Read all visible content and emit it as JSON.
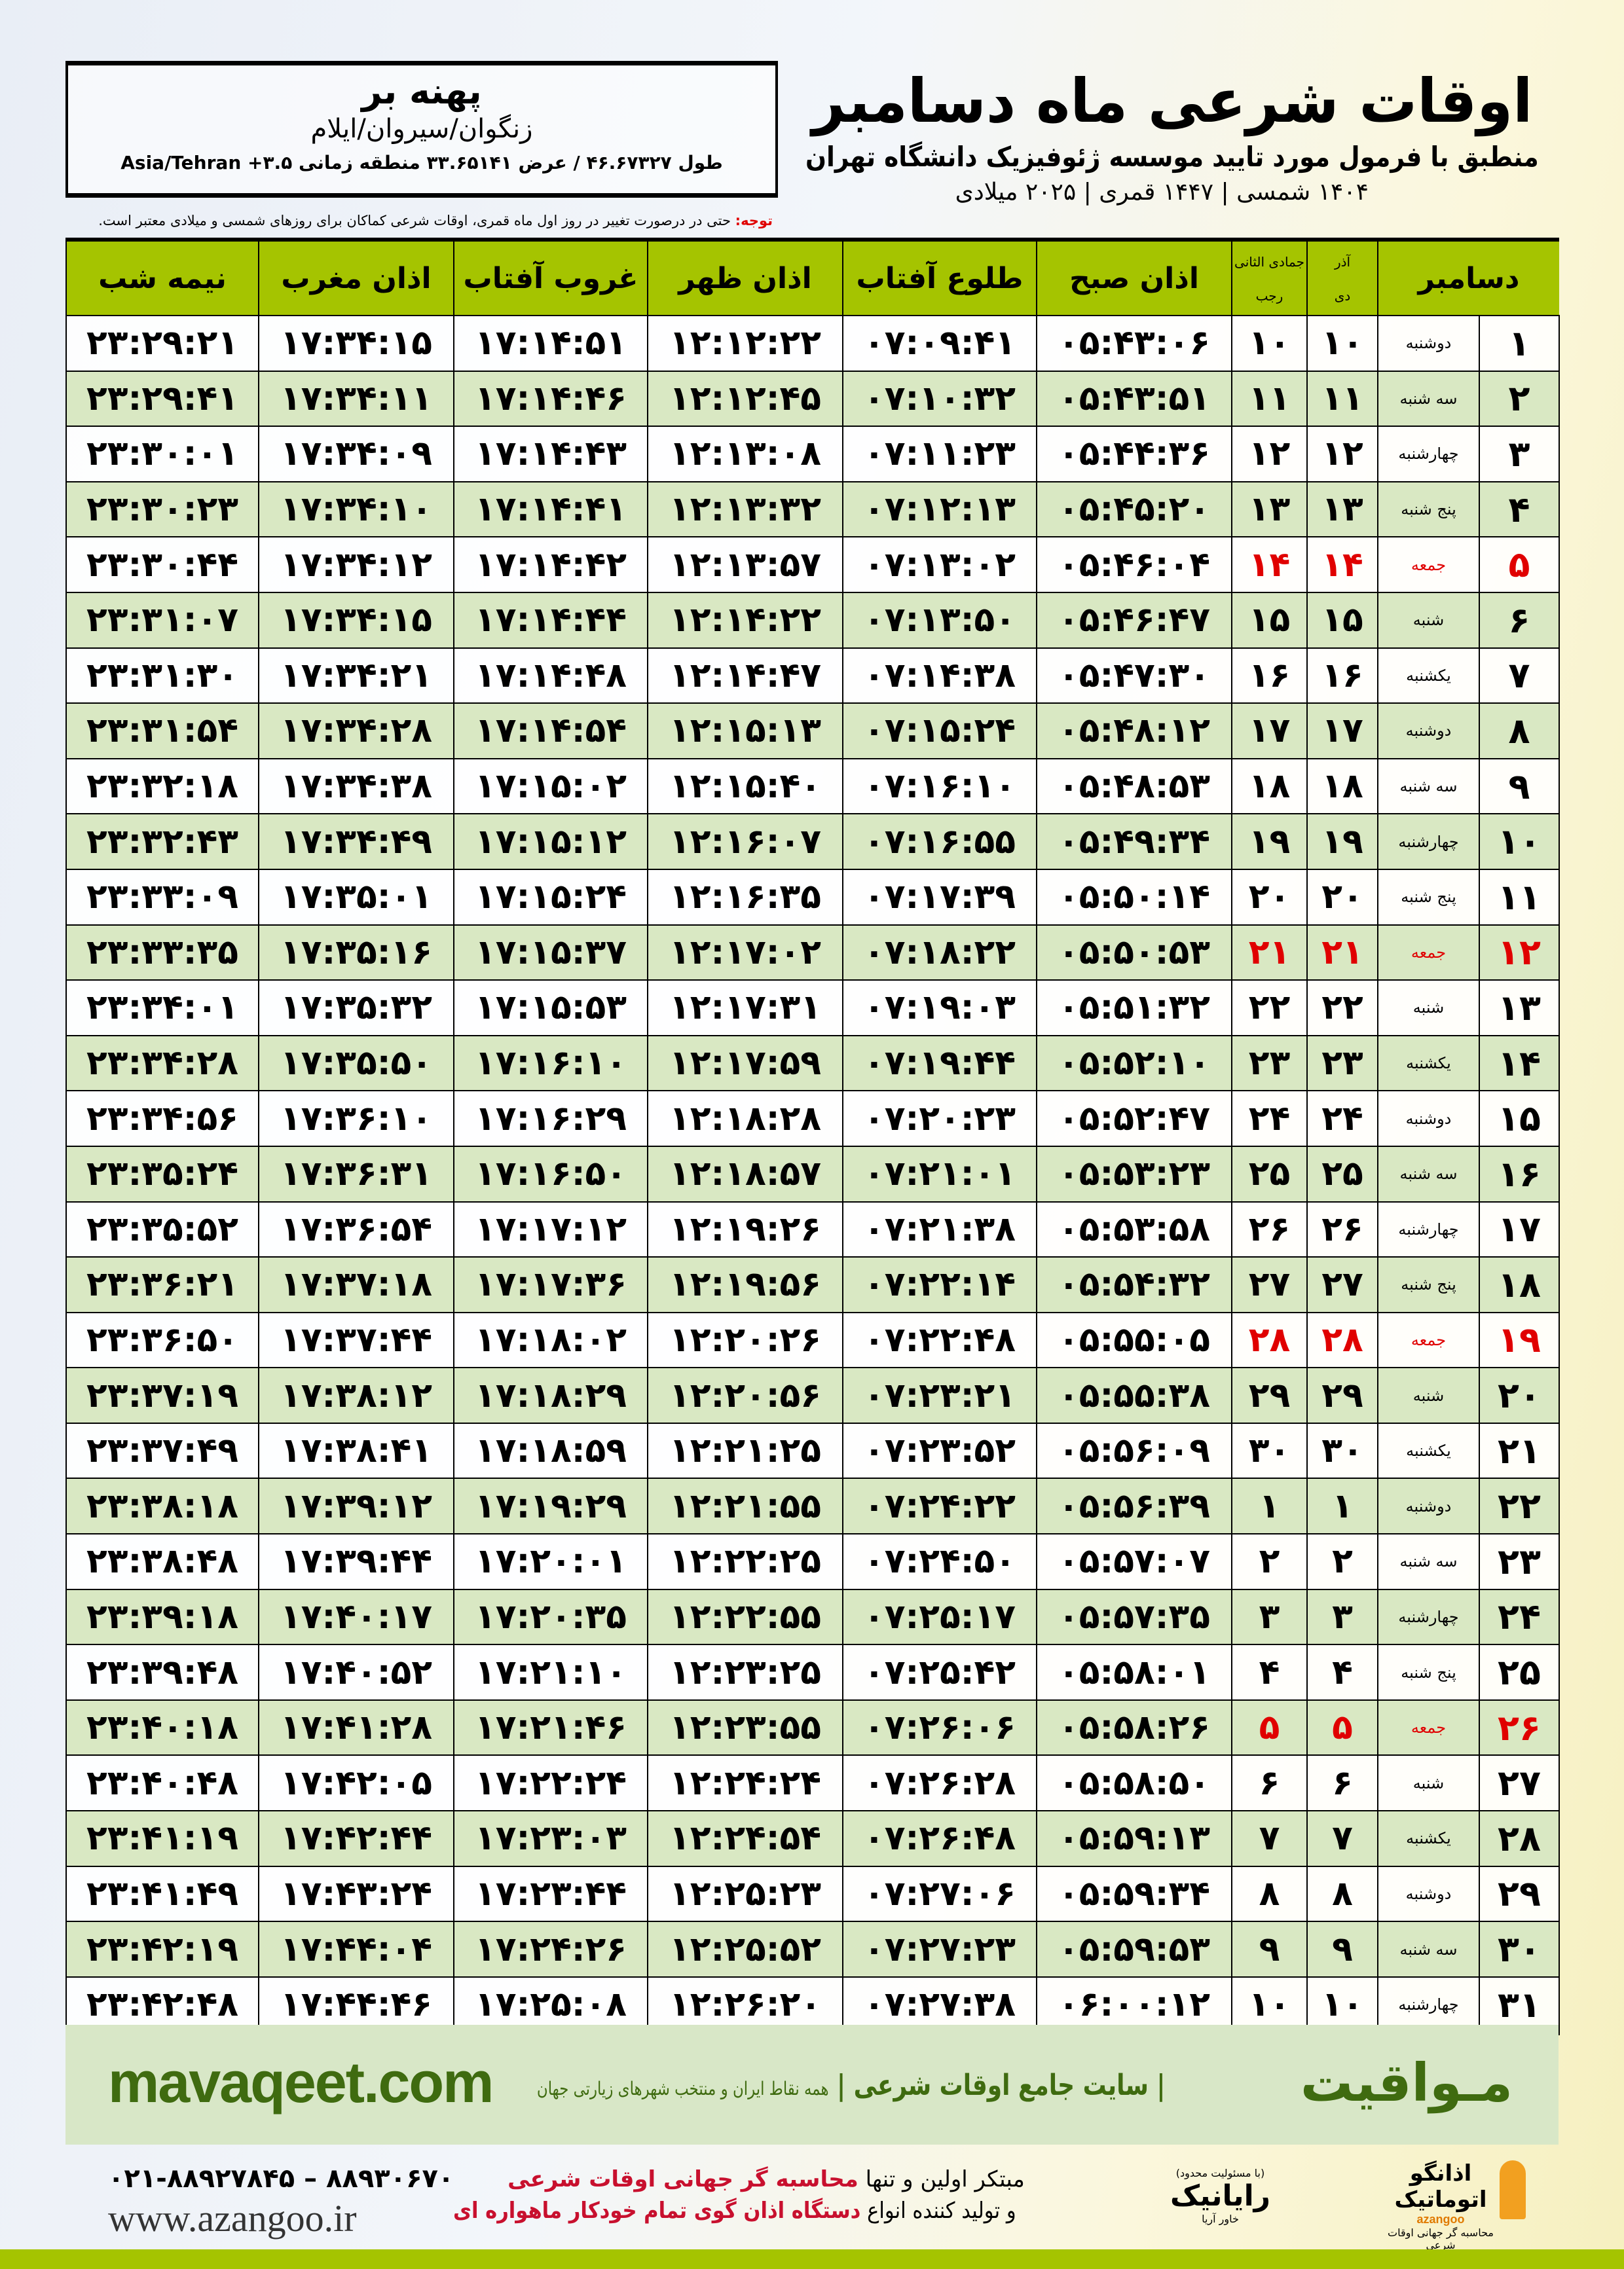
{
  "location": {
    "name": "پهنه بر",
    "sub": "زنگوان/سیروان/ایلام",
    "coords": "طول ۴۶.۶۷۳۲۷ / عرض ۳۳.۶۵۱۴۱ منطقه زمانی ۳.۵+ Asia/Tehran"
  },
  "header": {
    "title": "اوقات شرعی ماه دسامبر",
    "subtitle": "منطبق با فرمول مورد تایید موسسه ژئوفیزیک دانشگاه تهران",
    "years": "۱۴۰۴ شمسی | ۱۴۴۷ قمری | ۲۰۲۵ میلادی"
  },
  "note": {
    "label": "توجه:",
    "text": " حتی در درصورت تغییر در روز اول ماه قمری، اوقات شرعی کماکان برای روزهای شمسی و میلادی معتبر است."
  },
  "table": {
    "headers": {
      "day": "دسامبر",
      "shamsi_top": "آذر",
      "shamsi_bottom": "دی",
      "qamari_top": "جمادی الثانی",
      "qamari_bottom": "رجب",
      "fajr": "اذان صبح",
      "sunrise": "طلوع آفتاب",
      "dhuhr": "اذان ظهر",
      "sunset": "غروب آفتاب",
      "maghrib": "اذان مغرب",
      "midnight": "نیمه شب"
    },
    "friday_color": "#e00000",
    "header_color": "#a5c400",
    "rows": [
      [
        "۱",
        "دوشنبه",
        "۱۰",
        "۱۰",
        "۰۵:۴۳:۰۶",
        "۰۷:۰۹:۴۱",
        "۱۲:۱۲:۲۲",
        "۱۷:۱۴:۵۱",
        "۱۷:۳۴:۱۵",
        "۲۳:۲۹:۲۱"
      ],
      [
        "۲",
        "سه شنبه",
        "۱۱",
        "۱۱",
        "۰۵:۴۳:۵۱",
        "۰۷:۱۰:۳۲",
        "۱۲:۱۲:۴۵",
        "۱۷:۱۴:۴۶",
        "۱۷:۳۴:۱۱",
        "۲۳:۲۹:۴۱"
      ],
      [
        "۳",
        "چهارشنبه",
        "۱۲",
        "۱۲",
        "۰۵:۴۴:۳۶",
        "۰۷:۱۱:۲۳",
        "۱۲:۱۳:۰۸",
        "۱۷:۱۴:۴۳",
        "۱۷:۳۴:۰۹",
        "۲۳:۳۰:۰۱"
      ],
      [
        "۴",
        "پنج شنبه",
        "۱۳",
        "۱۳",
        "۰۵:۴۵:۲۰",
        "۰۷:۱۲:۱۳",
        "۱۲:۱۳:۳۲",
        "۱۷:۱۴:۴۱",
        "۱۷:۳۴:۱۰",
        "۲۳:۳۰:۲۳"
      ],
      [
        "۵",
        "جمعه",
        "۱۴",
        "۱۴",
        "۰۵:۴۶:۰۴",
        "۰۷:۱۳:۰۲",
        "۱۲:۱۳:۵۷",
        "۱۷:۱۴:۴۲",
        "۱۷:۳۴:۱۲",
        "۲۳:۳۰:۴۴"
      ],
      [
        "۶",
        "شنبه",
        "۱۵",
        "۱۵",
        "۰۵:۴۶:۴۷",
        "۰۷:۱۳:۵۰",
        "۱۲:۱۴:۲۲",
        "۱۷:۱۴:۴۴",
        "۱۷:۳۴:۱۵",
        "۲۳:۳۱:۰۷"
      ],
      [
        "۷",
        "یکشنبه",
        "۱۶",
        "۱۶",
        "۰۵:۴۷:۳۰",
        "۰۷:۱۴:۳۸",
        "۱۲:۱۴:۴۷",
        "۱۷:۱۴:۴۸",
        "۱۷:۳۴:۲۱",
        "۲۳:۳۱:۳۰"
      ],
      [
        "۸",
        "دوشنبه",
        "۱۷",
        "۱۷",
        "۰۵:۴۸:۱۲",
        "۰۷:۱۵:۲۴",
        "۱۲:۱۵:۱۳",
        "۱۷:۱۴:۵۴",
        "۱۷:۳۴:۲۸",
        "۲۳:۳۱:۵۴"
      ],
      [
        "۹",
        "سه شنبه",
        "۱۸",
        "۱۸",
        "۰۵:۴۸:۵۳",
        "۰۷:۱۶:۱۰",
        "۱۲:۱۵:۴۰",
        "۱۷:۱۵:۰۲",
        "۱۷:۳۴:۳۸",
        "۲۳:۳۲:۱۸"
      ],
      [
        "۱۰",
        "چهارشنبه",
        "۱۹",
        "۱۹",
        "۰۵:۴۹:۳۴",
        "۰۷:۱۶:۵۵",
        "۱۲:۱۶:۰۷",
        "۱۷:۱۵:۱۲",
        "۱۷:۳۴:۴۹",
        "۲۳:۳۲:۴۳"
      ],
      [
        "۱۱",
        "پنج شنبه",
        "۲۰",
        "۲۰",
        "۰۵:۵۰:۱۴",
        "۰۷:۱۷:۳۹",
        "۱۲:۱۶:۳۵",
        "۱۷:۱۵:۲۴",
        "۱۷:۳۵:۰۱",
        "۲۳:۳۳:۰۹"
      ],
      [
        "۱۲",
        "جمعه",
        "۲۱",
        "۲۱",
        "۰۵:۵۰:۵۳",
        "۰۷:۱۸:۲۲",
        "۱۲:۱۷:۰۲",
        "۱۷:۱۵:۳۷",
        "۱۷:۳۵:۱۶",
        "۲۳:۳۳:۳۵"
      ],
      [
        "۱۳",
        "شنبه",
        "۲۲",
        "۲۲",
        "۰۵:۵۱:۳۲",
        "۰۷:۱۹:۰۳",
        "۱۲:۱۷:۳۱",
        "۱۷:۱۵:۵۳",
        "۱۷:۳۵:۳۲",
        "۲۳:۳۴:۰۱"
      ],
      [
        "۱۴",
        "یکشنبه",
        "۲۳",
        "۲۳",
        "۰۵:۵۲:۱۰",
        "۰۷:۱۹:۴۴",
        "۱۲:۱۷:۵۹",
        "۱۷:۱۶:۱۰",
        "۱۷:۳۵:۵۰",
        "۲۳:۳۴:۲۸"
      ],
      [
        "۱۵",
        "دوشنبه",
        "۲۴",
        "۲۴",
        "۰۵:۵۲:۴۷",
        "۰۷:۲۰:۲۳",
        "۱۲:۱۸:۲۸",
        "۱۷:۱۶:۲۹",
        "۱۷:۳۶:۱۰",
        "۲۳:۳۴:۵۶"
      ],
      [
        "۱۶",
        "سه شنبه",
        "۲۵",
        "۲۵",
        "۰۵:۵۳:۲۳",
        "۰۷:۲۱:۰۱",
        "۱۲:۱۸:۵۷",
        "۱۷:۱۶:۵۰",
        "۱۷:۳۶:۳۱",
        "۲۳:۳۵:۲۴"
      ],
      [
        "۱۷",
        "چهارشنبه",
        "۲۶",
        "۲۶",
        "۰۵:۵۳:۵۸",
        "۰۷:۲۱:۳۸",
        "۱۲:۱۹:۲۶",
        "۱۷:۱۷:۱۲",
        "۱۷:۳۶:۵۴",
        "۲۳:۳۵:۵۲"
      ],
      [
        "۱۸",
        "پنج شنبه",
        "۲۷",
        "۲۷",
        "۰۵:۵۴:۳۲",
        "۰۷:۲۲:۱۴",
        "۱۲:۱۹:۵۶",
        "۱۷:۱۷:۳۶",
        "۱۷:۳۷:۱۸",
        "۲۳:۳۶:۲۱"
      ],
      [
        "۱۹",
        "جمعه",
        "۲۸",
        "۲۸",
        "۰۵:۵۵:۰۵",
        "۰۷:۲۲:۴۸",
        "۱۲:۲۰:۲۶",
        "۱۷:۱۸:۰۲",
        "۱۷:۳۷:۴۴",
        "۲۳:۳۶:۵۰"
      ],
      [
        "۲۰",
        "شنبه",
        "۲۹",
        "۲۹",
        "۰۵:۵۵:۳۸",
        "۰۷:۲۳:۲۱",
        "۱۲:۲۰:۵۶",
        "۱۷:۱۸:۲۹",
        "۱۷:۳۸:۱۲",
        "۲۳:۳۷:۱۹"
      ],
      [
        "۲۱",
        "یکشنبه",
        "۳۰",
        "۳۰",
        "۰۵:۵۶:۰۹",
        "۰۷:۲۳:۵۲",
        "۱۲:۲۱:۲۵",
        "۱۷:۱۸:۵۹",
        "۱۷:۳۸:۴۱",
        "۲۳:۳۷:۴۹"
      ],
      [
        "۲۲",
        "دوشنبه",
        "۱",
        "۱",
        "۰۵:۵۶:۳۹",
        "۰۷:۲۴:۲۲",
        "۱۲:۲۱:۵۵",
        "۱۷:۱۹:۲۹",
        "۱۷:۳۹:۱۲",
        "۲۳:۳۸:۱۸"
      ],
      [
        "۲۳",
        "سه شنبه",
        "۲",
        "۲",
        "۰۵:۵۷:۰۷",
        "۰۷:۲۴:۵۰",
        "۱۲:۲۲:۲۵",
        "۱۷:۲۰:۰۱",
        "۱۷:۳۹:۴۴",
        "۲۳:۳۸:۴۸"
      ],
      [
        "۲۴",
        "چهارشنبه",
        "۳",
        "۳",
        "۰۵:۵۷:۳۵",
        "۰۷:۲۵:۱۷",
        "۱۲:۲۲:۵۵",
        "۱۷:۲۰:۳۵",
        "۱۷:۴۰:۱۷",
        "۲۳:۳۹:۱۸"
      ],
      [
        "۲۵",
        "پنج شنبه",
        "۴",
        "۴",
        "۰۵:۵۸:۰۱",
        "۰۷:۲۵:۴۲",
        "۱۲:۲۳:۲۵",
        "۱۷:۲۱:۱۰",
        "۱۷:۴۰:۵۲",
        "۲۳:۳۹:۴۸"
      ],
      [
        "۲۶",
        "جمعه",
        "۵",
        "۵",
        "۰۵:۵۸:۲۶",
        "۰۷:۲۶:۰۶",
        "۱۲:۲۳:۵۵",
        "۱۷:۲۱:۴۶",
        "۱۷:۴۱:۲۸",
        "۲۳:۴۰:۱۸"
      ],
      [
        "۲۷",
        "شنبه",
        "۶",
        "۶",
        "۰۵:۵۸:۵۰",
        "۰۷:۲۶:۲۸",
        "۱۲:۲۴:۲۴",
        "۱۷:۲۲:۲۴",
        "۱۷:۴۲:۰۵",
        "۲۳:۴۰:۴۸"
      ],
      [
        "۲۸",
        "یکشنبه",
        "۷",
        "۷",
        "۰۵:۵۹:۱۳",
        "۰۷:۲۶:۴۸",
        "۱۲:۲۴:۵۴",
        "۱۷:۲۳:۰۳",
        "۱۷:۴۲:۴۴",
        "۲۳:۴۱:۱۹"
      ],
      [
        "۲۹",
        "دوشنبه",
        "۸",
        "۸",
        "۰۵:۵۹:۳۴",
        "۰۷:۲۷:۰۶",
        "۱۲:۲۵:۲۳",
        "۱۷:۲۳:۴۴",
        "۱۷:۴۳:۲۴",
        "۲۳:۴۱:۴۹"
      ],
      [
        "۳۰",
        "سه شنبه",
        "۹",
        "۹",
        "۰۵:۵۹:۵۳",
        "۰۷:۲۷:۲۳",
        "۱۲:۲۵:۵۲",
        "۱۷:۲۴:۲۶",
        "۱۷:۴۴:۰۴",
        "۲۳:۴۲:۱۹"
      ],
      [
        "۳۱",
        "چهارشنبه",
        "۱۰",
        "۱۰",
        "۰۶:۰۰:۱۲",
        "۰۷:۲۷:۳۸",
        "۱۲:۲۶:۲۰",
        "۱۷:۲۵:۰۸",
        "۱۷:۴۴:۴۶",
        "۲۳:۴۲:۴۸"
      ]
    ]
  },
  "footer": {
    "mavaqeet_logo": "مـواقیت",
    "mavaqeet_slogan": "| سایت جامع اوقات شرعی |",
    "mavaqeet_slogan_small": "همه نقاط ایران و منتخب شهرهای زیارتی جهان",
    "mavaqeet_url": "mavaqeet.com",
    "azangoo_name": "اذانگو اتوماتیک",
    "azangoo_tag": "محاسبه گر جهانی اوقات شرعی",
    "azangoo_en": "azangoo",
    "rayanik_name": "رایانیک",
    "rayanik_sub": "خاور آریا",
    "rayanik_note": "(با مسئولیت محدود)",
    "promo_1a": "مبتکر اولین و تنها ",
    "promo_1b": "محاسبه گر جهانی اوقات شرعی",
    "promo_2a": "و تولید کننده انواع ",
    "promo_2b": "دستگاه اذان گوی تمام خودکار ماهواره ای",
    "phones": "۰۲۱-۸۸۹۲۷۸۴۵ – ۸۸۹۳۰۶۷۰",
    "azangoo_url": "www.azangoo.ir",
    "brand_green": "#3f6b10",
    "accent_red": "#c8102e"
  }
}
